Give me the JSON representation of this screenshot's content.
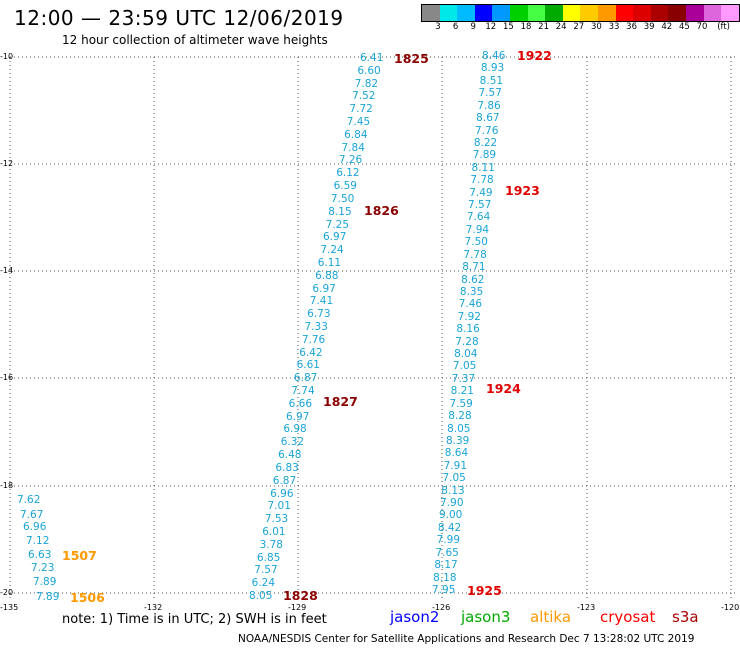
{
  "header": {
    "title": "12:00 — 23:59 UTC 12/06/2019",
    "subtitle": "12 hour collection of altimeter wave heights"
  },
  "legend": {
    "colors": [
      "#888888",
      "#00e8e8",
      "#00bbff",
      "#0000ff",
      "#0099ff",
      "#00d000",
      "#44ff44",
      "#00aa00",
      "#ffff00",
      "#ffcc00",
      "#ff9900",
      "#ff0000",
      "#dd0000",
      "#aa0000",
      "#880000",
      "#aa0099",
      "#dd66dd",
      "#ff99ff",
      "#000000"
    ],
    "labels": [
      "3",
      "6",
      "9",
      "12",
      "15",
      "18",
      "21",
      "24",
      "27",
      "30",
      "33",
      "36",
      "39",
      "42",
      "45",
      "70",
      "(ft)"
    ]
  },
  "map": {
    "lat_labels": [
      "-10",
      "-12",
      "-14",
      "-16",
      "-18",
      "-20"
    ],
    "lon_labels": [
      "-135",
      "-132",
      "-129",
      "-126",
      "-123",
      "-120"
    ],
    "track_1825_1828": [
      "6.41",
      "6.60",
      "7.82",
      "7.52",
      "7.72",
      "7.45",
      "6.84",
      "7.84",
      "7.26",
      "6.12",
      "6.59",
      "7.50",
      "8.15",
      "7.25",
      "6.97",
      "7.24",
      "6.11",
      "6.88",
      "6.97",
      "7.41",
      "6.73",
      "7.33",
      "7.76",
      "6.42",
      "6.61",
      "6.87",
      "7.74",
      "6.66",
      "6.97",
      "6.98",
      "6.32",
      "6.48",
      "6.83",
      "6.87",
      "6.96",
      "7.01",
      "7.53",
      "6.01",
      "3.78",
      "6.85",
      "7.57",
      "6.24",
      "8.05"
    ],
    "track_1922_1925": [
      "8.46",
      "8.93",
      "8.51",
      "7.57",
      "7.86",
      "8.67",
      "7.76",
      "8.22",
      "7.89",
      "8.11",
      "7.78",
      "7.49",
      "7.57",
      "7.64",
      "7.94",
      "7.50",
      "7.78",
      "8.71",
      "8.62",
      "8.35",
      "7.46",
      "7.92",
      "8.16",
      "7.28",
      "8.04",
      "7.05",
      "7.37",
      "8.21",
      "7.59",
      "8.28",
      "8.05",
      "8.39",
      "8.64",
      "7.91",
      "7.05",
      "8.13",
      "7.90",
      "9.00",
      "8.42",
      "7.99",
      "7.65",
      "8.17",
      "8.18",
      "7.95"
    ],
    "track_1506_1507": [
      "7.62",
      "7.67",
      "6.96",
      "7.12",
      "6.63",
      "7.23",
      "7.89",
      "7.89"
    ],
    "time_labels": {
      "t1825": "1825",
      "t1826": "1826",
      "t1827": "1827",
      "t1828": "1828",
      "t1922": "1922",
      "t1923": "1923",
      "t1924": "1924",
      "t1925": "1925",
      "t1506": "1506",
      "t1507": "1507"
    }
  },
  "footer": {
    "note": "note:  1) Time is in UTC;  2) SWH is in feet",
    "satellites": [
      "jason2",
      "jason3",
      "altika",
      "cryosat",
      "s3a"
    ],
    "satellite_colors": [
      "#0000ff",
      "#00aa00",
      "#ff9900",
      "#ff0000",
      "#aa0000"
    ],
    "credit": "NOAA/NESDIS Center for Satellite Applications and Research     Dec  7 13:28:02 UTC 2019"
  },
  "colors": {
    "wave_text": "#1aa4d6",
    "time_red": "#e00000",
    "time_darkred": "#8b0000",
    "time_orange": "#ff9900"
  }
}
